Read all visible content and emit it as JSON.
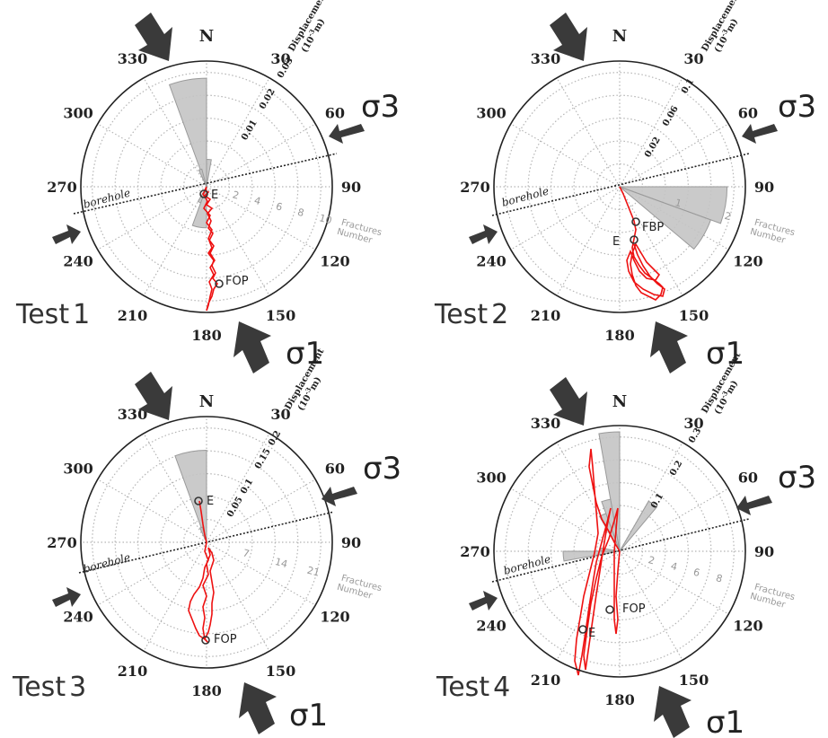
{
  "chart_data": [
    {
      "type": "polar-rose",
      "title": "Test",
      "title_num": "1",
      "north_label": "N",
      "degree_labels": [
        "30",
        "60",
        "90",
        "120",
        "150",
        "180",
        "210",
        "240",
        "270",
        "300",
        "330"
      ],
      "displacement_label": "Displacement",
      "displacement_unit": "(10",
      "displacement_unit_exp": "-3",
      "displacement_unit_end": "m)",
      "displacement_ticks": [
        "0.01",
        "0.02",
        "0.03"
      ],
      "displacement_max": 0.035,
      "fractures_label": "Fractures",
      "fractures_label2": "Number",
      "fracture_ticks": [
        "2",
        "4",
        "6",
        "8",
        "10"
      ],
      "fracture_max": 11,
      "borehole_label": "borehole",
      "borehole_azimuth": 75,
      "rose_bins": [
        {
          "azimuth": 350,
          "width": 20,
          "count": 9.5
        },
        {
          "azimuth": 5,
          "width": 10,
          "count": 2.4
        },
        {
          "azimuth": 190,
          "width": 20,
          "count": 3.6
        },
        {
          "azimuth": 205,
          "width": 10,
          "count": 1.5
        },
        {
          "azimuth": 340,
          "width": 10,
          "count": 1.6
        }
      ],
      "trajectory_azimuth_deg": [
        [
          0.0,
          0.0
        ],
        [
          0.006,
          175
        ],
        [
          0.012,
          177
        ],
        [
          0.01,
          182
        ],
        [
          0.015,
          179
        ],
        [
          0.018,
          176
        ],
        [
          0.021,
          180
        ],
        [
          0.024,
          172
        ],
        [
          0.026,
          176
        ],
        [
          0.029,
          170
        ],
        [
          0.031,
          174
        ],
        [
          0.033,
          178
        ],
        [
          0.034,
          179
        ]
      ],
      "points": [
        {
          "label": "E",
          "azimuth": 135,
          "displacement": 0.0012
        },
        {
          "label": "FOP",
          "azimuth": 171,
          "displacement": 0.028
        }
      ],
      "sigma1_label": "σ1",
      "sigma3_label": "σ3"
    },
    {
      "type": "polar-rose",
      "title": "Test",
      "title_num": "2",
      "north_label": "N",
      "degree_labels": [
        "30",
        "60",
        "90",
        "120",
        "150",
        "180",
        "210",
        "240",
        "270",
        "300",
        "330"
      ],
      "displacement_label": "Displacement",
      "displacement_unit": "(10",
      "displacement_unit_exp": "-3",
      "displacement_unit_end": "m)",
      "displacement_ticks": [
        "0.02",
        "0.06",
        "0.1"
      ],
      "displacement_max": 0.14,
      "fractures_label": "Fractures",
      "fractures_label2": "Number",
      "fracture_ticks": [
        "1",
        "2"
      ],
      "fracture_max": 2.4,
      "borehole_label": "borehole",
      "borehole_azimuth": 75,
      "rose_bins": [
        {
          "azimuth": 100,
          "width": 20,
          "count": 2.05
        },
        {
          "azimuth": 120,
          "width": 20,
          "count": 1.85
        }
      ],
      "trajectory_azimuth_deg": [
        [
          0.0,
          0.0
        ],
        [
          0.01,
          150
        ],
        [
          0.025,
          160
        ],
        [
          0.04,
          162
        ],
        [
          0.05,
          158
        ],
        [
          0.065,
          150
        ],
        [
          0.08,
          148
        ],
        [
          0.09,
          143
        ],
        [
          0.085,
          152
        ],
        [
          0.095,
          146
        ],
        [
          0.075,
          155
        ],
        [
          0.06,
          163
        ],
        [
          0.07,
          158
        ],
        [
          0.085,
          150
        ],
        [
          0.092,
          144
        ]
      ],
      "points": [
        {
          "label": "FBP",
          "azimuth": 155,
          "displacement": 0.04
        },
        {
          "label": "E",
          "azimuth": 163,
          "displacement": 0.06
        }
      ],
      "sigma1_label": "σ1",
      "sigma3_label": "σ3"
    },
    {
      "type": "polar-rose",
      "title": "Test",
      "title_num": "3",
      "north_label": "N",
      "degree_labels": [
        "30",
        "60",
        "90",
        "120",
        "150",
        "180",
        "210",
        "240",
        "270",
        "300",
        "330"
      ],
      "displacement_label": "Displacement",
      "displacement_unit": "(10",
      "displacement_unit_exp": "-3",
      "displacement_unit_end": "m)",
      "displacement_ticks": [
        "0.05",
        "0.1",
        "0.15",
        "0.2"
      ],
      "displacement_max": 0.24,
      "fractures_label": "Fractures",
      "fractures_label2": "Number",
      "fracture_ticks": [
        "7",
        "14",
        "21"
      ],
      "fracture_max": 28,
      "borehole_label": "borehole",
      "borehole_azimuth": 75,
      "rose_bins": [
        {
          "azimuth": 350,
          "width": 20,
          "count": 20.5
        },
        {
          "azimuth": 340,
          "width": 10,
          "count": 3.5
        }
      ],
      "trajectory_azimuth_deg": [
        [
          0.0,
          0.0
        ],
        [
          0.02,
          170
        ],
        [
          0.06,
          175
        ],
        [
          0.09,
          178
        ],
        [
          0.12,
          180
        ],
        [
          0.14,
          182
        ],
        [
          0.16,
          181
        ],
        [
          0.18,
          180
        ]
      ],
      "points": [
        {
          "label": "E",
          "azimuth": 359,
          "displacement": 0.09
        },
        {
          "label": "FOP",
          "azimuth": 180,
          "displacement": 0.18
        }
      ],
      "sigma1_label": "σ1",
      "sigma3_label": "σ3"
    },
    {
      "type": "polar-rose",
      "title": "Test",
      "title_num": "4",
      "north_label": "N",
      "degree_labels": [
        "30",
        "60",
        "90",
        "120",
        "150",
        "180",
        "210",
        "240",
        "270",
        "300",
        "330"
      ],
      "displacement_label": "Displacement",
      "displacement_unit": "(10",
      "displacement_unit_exp": "-3",
      "displacement_unit_end": "m)",
      "displacement_ticks": [
        "0.1",
        "0.2",
        "0.3"
      ],
      "displacement_max": 0.36,
      "fractures_label": "Fractures",
      "fractures_label2": "Number",
      "fracture_ticks": [
        "2",
        "4",
        "6",
        "8"
      ],
      "fracture_max": 10,
      "borehole_label": "borehole",
      "borehole_azimuth": 75,
      "rose_bins": [
        {
          "azimuth": 355,
          "width": 10,
          "count": 9.5
        },
        {
          "azimuth": 345,
          "width": 10,
          "count": 4.2
        },
        {
          "azimuth": 335,
          "width": 10,
          "count": 3.2
        },
        {
          "azimuth": 35,
          "width": 10,
          "count": 4.6
        },
        {
          "azimuth": 265,
          "width": 10,
          "count": 4.5
        },
        {
          "azimuth": 275,
          "width": 10,
          "count": 1.5
        }
      ],
      "trajectory_azimuth_deg": [
        [
          0.0,
          0.0
        ],
        [
          0.1,
          330
        ],
        [
          0.2,
          345
        ],
        [
          0.28,
          352
        ],
        [
          0.2,
          200
        ],
        [
          0.15,
          210
        ],
        [
          0.08,
          190
        ],
        [
          0.25,
          195
        ]
      ],
      "points": [
        {
          "label": "FOP",
          "azimuth": 195,
          "displacement": 0.08
        },
        {
          "label": "E",
          "azimuth": 205,
          "displacement": 0.2
        }
      ],
      "sigma1_label": "σ1",
      "sigma3_label": "σ3"
    }
  ]
}
